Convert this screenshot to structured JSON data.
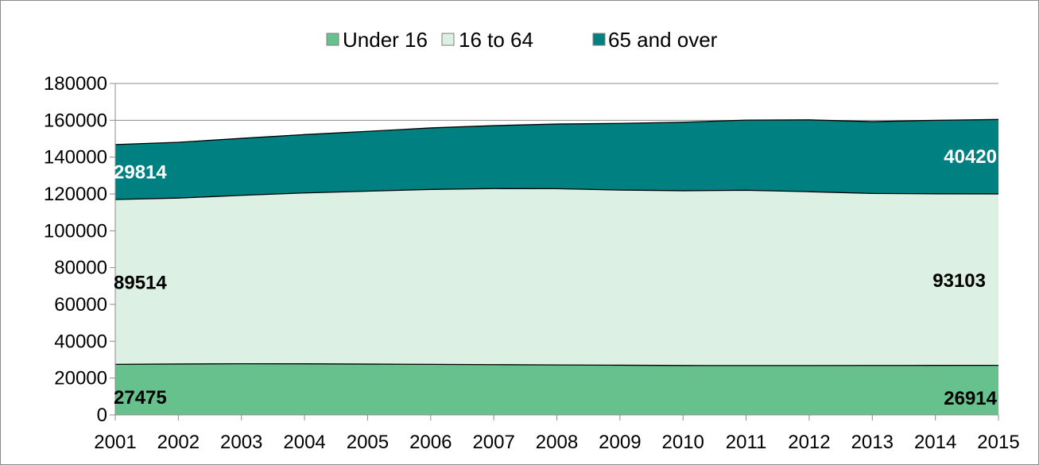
{
  "chart_data": {
    "type": "area",
    "stacked": true,
    "x": [
      "2001",
      "2002",
      "2003",
      "2004",
      "2005",
      "2006",
      "2007",
      "2008",
      "2009",
      "2010",
      "2011",
      "2012",
      "2013",
      "2014",
      "2015"
    ],
    "ylim": [
      0,
      180000
    ],
    "yticks": [
      0,
      20000,
      40000,
      60000,
      80000,
      100000,
      120000,
      140000,
      160000,
      180000
    ],
    "grid": true,
    "legend_position": "top",
    "series": [
      {
        "name": "Under 16",
        "color": "#66c18c",
        "values": [
          27475,
          27650,
          27800,
          27750,
          27600,
          27450,
          27300,
          27150,
          27000,
          26850,
          26800,
          26820,
          26860,
          26890,
          26914
        ]
      },
      {
        "name": "16 to 64",
        "color": "#ddf0e4",
        "values": [
          89514,
          90100,
          91450,
          92800,
          93900,
          95000,
          95600,
          95700,
          95100,
          94900,
          95200,
          94400,
          93400,
          93200,
          93103
        ]
      },
      {
        "name": "65 and over",
        "color": "#008080",
        "values": [
          29814,
          30300,
          30950,
          31700,
          32500,
          33400,
          34200,
          35100,
          36200,
          37200,
          38100,
          39000,
          39000,
          39900,
          40420
        ]
      }
    ],
    "data_labels": [
      {
        "series": 0,
        "index": 0,
        "text": "27475",
        "color": "#000000"
      },
      {
        "series": 0,
        "index": 14,
        "text": "26914",
        "color": "#000000"
      },
      {
        "series": 1,
        "index": 0,
        "text": "89514",
        "color": "#000000"
      },
      {
        "series": 1,
        "index": 14,
        "text": "93103",
        "color": "#000000"
      },
      {
        "series": 2,
        "index": 0,
        "text": "29814",
        "color": "#ffffff"
      },
      {
        "series": 2,
        "index": 14,
        "text": "40420",
        "color": "#ffffff"
      }
    ]
  }
}
